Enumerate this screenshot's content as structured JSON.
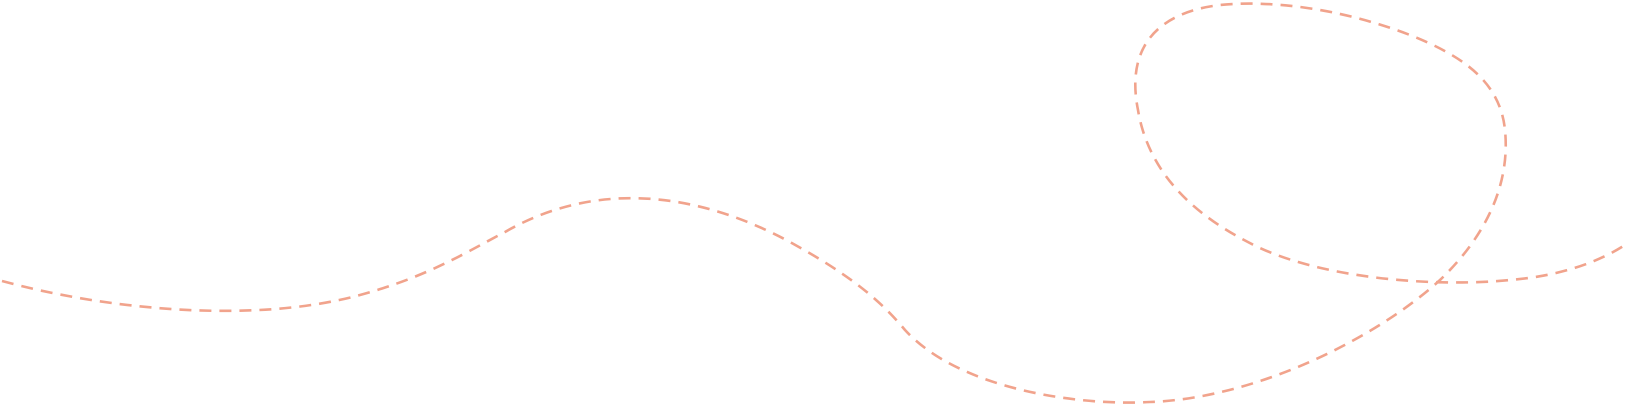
{
  "decoration": {
    "name": "dashed-loop-line",
    "stroke_color": "#F1A38C",
    "background_color": "#FFFFFF",
    "style": "dashed"
  }
}
